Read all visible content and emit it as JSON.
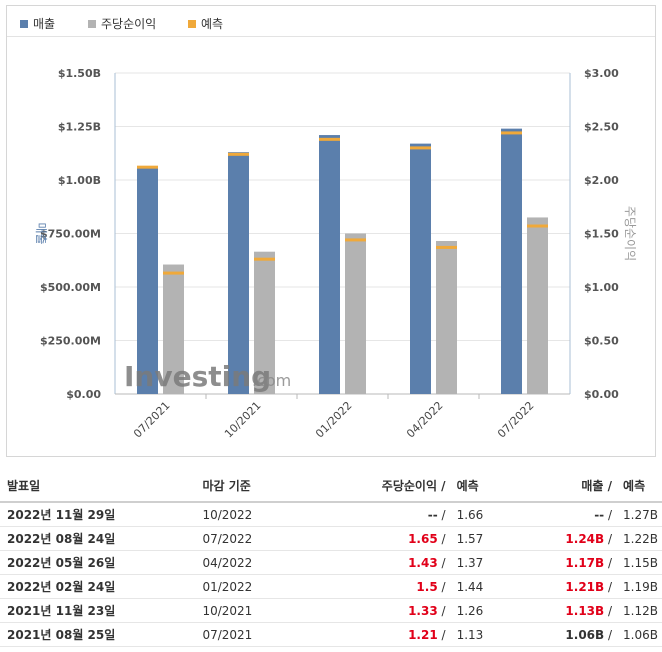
{
  "legend": [
    {
      "label": "매출",
      "color": "#5b7fac"
    },
    {
      "label": "주당순이익",
      "color": "#b3b3b3"
    },
    {
      "label": "예측",
      "color": "#f0a93a"
    }
  ],
  "chart_data": {
    "type": "bar",
    "categories": [
      "07/2021",
      "10/2021",
      "01/2022",
      "04/2022",
      "07/2022"
    ],
    "series": [
      {
        "name": "매출",
        "axis": "left",
        "values": [
          1.06,
          1.13,
          1.21,
          1.17,
          1.24
        ],
        "forecast": [
          1.06,
          1.12,
          1.19,
          1.15,
          1.22
        ],
        "color": "#5b7fac"
      },
      {
        "name": "주당순이익",
        "axis": "right",
        "values": [
          1.21,
          1.33,
          1.5,
          1.43,
          1.65
        ],
        "forecast": [
          1.13,
          1.26,
          1.44,
          1.37,
          1.57
        ],
        "color": "#b3b3b3"
      }
    ],
    "forecast_name": "예측",
    "forecast_color": "#f0a93a",
    "ylabel": "매출",
    "y2label": "주당순이익",
    "ylim": [
      0,
      1.5
    ],
    "y2lim": [
      0,
      3
    ],
    "yticks": [
      "$0.00",
      "$250.00M",
      "$500.00M",
      "$750.00M",
      "$1.00B",
      "$1.25B",
      "$1.50B"
    ],
    "y2ticks": [
      "$0.00",
      "$0.50",
      "$1.00",
      "$1.50",
      "$2.00",
      "$2.50",
      "$3.00"
    ],
    "grid": true,
    "legend_position": "top-left"
  },
  "watermark": {
    "main": "Investing",
    "suffix": ".com"
  },
  "table": {
    "headers": {
      "date": "발표일",
      "period": "마감 기준",
      "eps": "주당순이익",
      "eps_forecast": "예측",
      "revenue": "매출",
      "revenue_forecast": "예측",
      "sep": "/"
    },
    "rows": [
      {
        "date": "2022년 11월 29일",
        "period": "10/2022",
        "eps": "--",
        "eps_forecast": "1.66",
        "revenue": "--",
        "revenue_forecast": "1.27B",
        "beat": false
      },
      {
        "date": "2022년 08월 24일",
        "period": "07/2022",
        "eps": "1.65",
        "eps_forecast": "1.57",
        "revenue": "1.24B",
        "revenue_forecast": "1.22B",
        "beat": true
      },
      {
        "date": "2022년 05월 26일",
        "period": "04/2022",
        "eps": "1.43",
        "eps_forecast": "1.37",
        "revenue": "1.17B",
        "revenue_forecast": "1.15B",
        "beat": true
      },
      {
        "date": "2022년 02월 24일",
        "period": "01/2022",
        "eps": "1.5",
        "eps_forecast": "1.44",
        "revenue": "1.21B",
        "revenue_forecast": "1.19B",
        "beat": true
      },
      {
        "date": "2021년 11월 23일",
        "period": "10/2021",
        "eps": "1.33",
        "eps_forecast": "1.26",
        "revenue": "1.13B",
        "revenue_forecast": "1.12B",
        "beat": true
      },
      {
        "date": "2021년 08월 25일",
        "period": "07/2021",
        "eps": "1.21",
        "eps_forecast": "1.13",
        "revenue": "1.06B",
        "revenue_forecast": "1.06B",
        "beat": "mixed"
      }
    ]
  }
}
